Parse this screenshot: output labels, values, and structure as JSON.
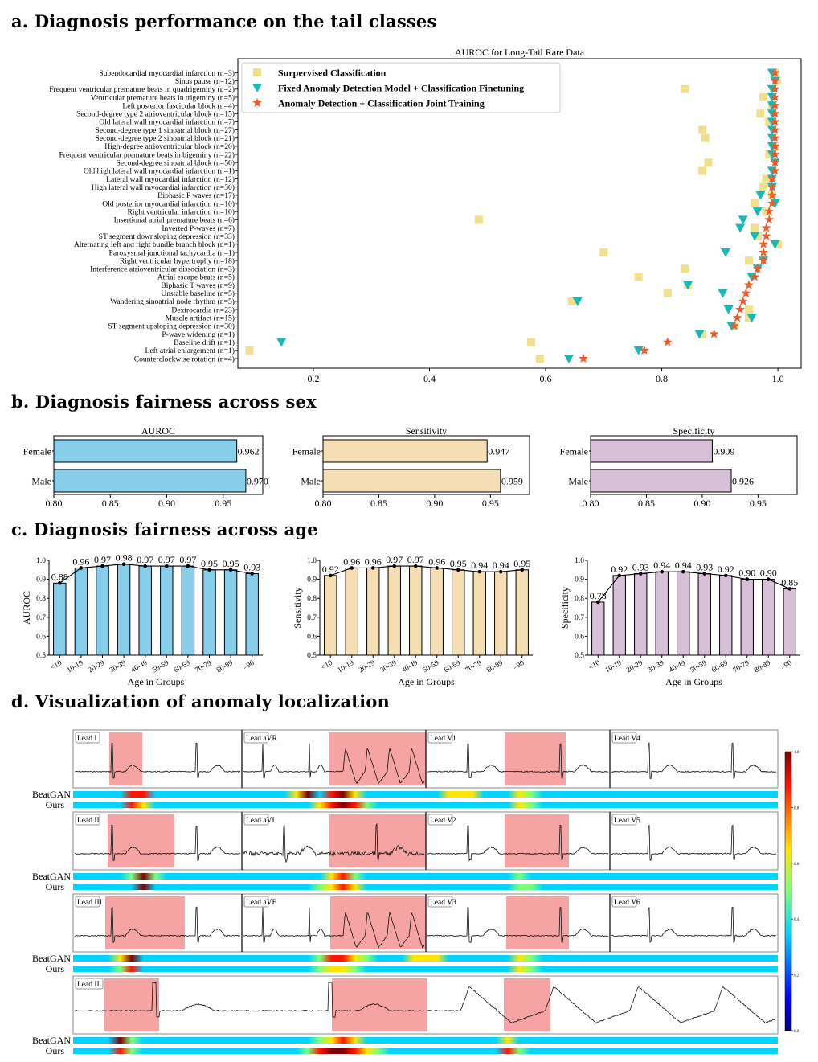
{
  "sections": {
    "a": "a. Diagnosis performance on the tail classes",
    "b": "b. Diagnosis fairness across sex",
    "c": "c. Diagnosis fairness across age",
    "d": "d. Visualization of anomaly localization"
  },
  "chart_data": [
    {
      "id": "tail",
      "type": "scatter",
      "title": "AUROC for Long-Tail Rare Data",
      "xlim": [
        0.07,
        1.04
      ],
      "xticks": [
        "0.2",
        "0.4",
        "0.6",
        "0.8",
        "1.0"
      ],
      "xtick_values": [
        0.2,
        0.4,
        0.6,
        0.8,
        1.0
      ],
      "legend_position": "top-left",
      "categories": [
        "Subendocardial myocardial infarction (n=3)",
        "Sinus pause (n=12)",
        "Frequent ventricular premature beats in quadrigeminy (n=2)",
        "Ventricular premature beats in trigeminy (n=5)",
        "Left posterior fascicular block (n=4)",
        "Second-degree type 2 atrioventricular block (n=15)",
        "Old lateral wall myocardial infarction (n=7)",
        "Second-degree type 1 sinoatrial block (n=27)",
        "Second-degree type 2 sinoatrial block (n=21)",
        "High-degree atrioventricular block (n=20)",
        "Frequent ventricular premature beats in bigeminy (n=22)",
        "Second-degree sinoatrial block (n=50)",
        "Old high lateral wall myocardial infarction (n=1)",
        "Lateral wall myocardial infarction (n=12)",
        "High lateral wall myocardial infarction (n=30)",
        "Biphasic P waves (n=17)",
        "Old posterior myocardial infarction (n=10)",
        "Right ventricular infarction (n=10)",
        "Insertional atrial premature beats (n=6)",
        "Inverted P-waves (n=7)",
        "ST segment downsloping depression (n=33)",
        "Alternating left and right bundle branch block (n=1)",
        "Paroxysmal junctional tachycardia (n=1)",
        "Right ventricular hypertrophy (n=18)",
        "Interference atrioventricular dissociation (n=3)",
        "Atrial escape beats (n=5)",
        "Biphasic T waves (n=9)",
        "Unstable baseline (n=5)",
        "Wandering sinoatrial node rhythm (n=5)",
        "Dextrocardia (n=23)",
        "Muscle artifact (n=15)",
        "ST segment upsloping depression (n=30)",
        "P-wave widening (n=1)",
        "Baseline drift (n=1)",
        "Left atrial enlargement (n=1)",
        "Counterclockwise rotation (n=4)"
      ],
      "series": [
        {
          "name": "Surpervised Classification",
          "marker": "square",
          "color": "#f0e08c",
          "values": [
            0.995,
            0.998,
            0.84,
            0.975,
            0.99,
            0.97,
            0.985,
            0.87,
            0.875,
            0.995,
            0.985,
            0.88,
            0.87,
            0.98,
            0.975,
            0.99,
            0.96,
            0.98,
            0.485,
            0.96,
            0.965,
            1.0,
            0.7,
            0.95,
            0.84,
            0.76,
            0.845,
            0.81,
            0.645,
            0.95,
            0.95,
            0.925,
            0.87,
            0.575,
            0.09,
            0.59
          ]
        },
        {
          "name": "Fixed Anomaly Detection Model + Classification Finetuning",
          "marker": "triangle",
          "color": "#17b8b8",
          "values": [
            0.99,
            0.995,
            0.99,
            0.99,
            0.99,
            0.99,
            0.99,
            0.99,
            0.99,
            0.99,
            0.99,
            0.995,
            0.99,
            0.99,
            0.99,
            0.97,
            0.995,
            0.965,
            0.94,
            0.935,
            0.96,
            0.995,
            0.91,
            0.975,
            0.965,
            0.955,
            0.845,
            0.905,
            0.655,
            0.915,
            0.955,
            0.92,
            0.865,
            0.145,
            0.76,
            0.64
          ]
        },
        {
          "name": "Anomaly Detection + Classification Joint Training",
          "marker": "star",
          "color": "#f05a28",
          "values": [
            0.995,
            0.995,
            0.995,
            0.995,
            0.995,
            0.995,
            0.995,
            0.995,
            0.995,
            0.995,
            0.995,
            0.995,
            0.995,
            0.99,
            0.99,
            0.99,
            0.99,
            0.985,
            0.985,
            0.98,
            0.98,
            0.975,
            0.975,
            0.975,
            0.965,
            0.96,
            0.95,
            0.945,
            0.94,
            0.935,
            0.93,
            0.925,
            0.89,
            0.81,
            0.77,
            0.665
          ]
        }
      ]
    },
    {
      "id": "sex",
      "type": "bar",
      "orientation": "horizontal",
      "panels": [
        {
          "title": "AUROC",
          "color": "#87ceeb",
          "categories": [
            "Female",
            "Male"
          ],
          "values": [
            0.962,
            0.97
          ],
          "labels": [
            "0.962",
            "0.970"
          ]
        },
        {
          "title": "Sensitivity",
          "color": "#f5deb3",
          "categories": [
            "Female",
            "Male"
          ],
          "values": [
            0.947,
            0.959
          ],
          "labels": [
            "0.947",
            "0.959"
          ]
        },
        {
          "title": "Specificity",
          "color": "#d8bfd8",
          "categories": [
            "Female",
            "Male"
          ],
          "values": [
            0.909,
            0.926
          ],
          "labels": [
            "0.909",
            "0.926"
          ]
        }
      ],
      "xlim": [
        0.8,
        0.985
      ],
      "xticks": [
        "0.80",
        "0.85",
        "0.90",
        "0.95"
      ],
      "xtick_values": [
        0.8,
        0.85,
        0.9,
        0.95
      ]
    },
    {
      "id": "age",
      "type": "bar",
      "xlabel": "Age in Groups",
      "categories": [
        "<10",
        "10-19",
        "20-29",
        "30-39",
        "40-49",
        "50-59",
        "60-69",
        "70-79",
        "80-89",
        ">90"
      ],
      "ylim": [
        0.5,
        1.0
      ],
      "yticks": [
        "0.5",
        "0.6",
        "0.7",
        "0.8",
        "0.9",
        "1.0"
      ],
      "ytick_values": [
        0.5,
        0.6,
        0.7,
        0.8,
        0.9,
        1.0
      ],
      "panels": [
        {
          "ylabel": "AUROC",
          "color": "#87ceeb",
          "values": [
            0.88,
            0.96,
            0.97,
            0.98,
            0.97,
            0.97,
            0.97,
            0.95,
            0.95,
            0.93
          ],
          "labels": [
            "0.88",
            "0.96",
            "0.97",
            "0.98",
            "0.97",
            "0.97",
            "0.97",
            "0.95",
            "0.95",
            "0.93"
          ]
        },
        {
          "ylabel": "Sensitivity",
          "color": "#f5deb3",
          "values": [
            0.92,
            0.96,
            0.96,
            0.97,
            0.97,
            0.96,
            0.95,
            0.94,
            0.94,
            0.95
          ],
          "labels": [
            "0.92",
            "0.96",
            "0.96",
            "0.97",
            "0.97",
            "0.96",
            "0.95",
            "0.94",
            "0.94",
            "0.95"
          ]
        },
        {
          "ylabel": "Specificity",
          "color": "#d8bfd8",
          "values": [
            0.78,
            0.92,
            0.93,
            0.94,
            0.94,
            0.93,
            0.92,
            0.9,
            0.9,
            0.85
          ],
          "labels": [
            "0.78",
            "0.92",
            "0.93",
            "0.94",
            "0.94",
            "0.93",
            "0.92",
            "0.90",
            "0.90",
            "0.85"
          ]
        }
      ]
    }
  ],
  "ecg": {
    "rows": [
      {
        "leads": [
          "Lead I",
          "Lead aVR",
          "Lead V1",
          "Lead V4"
        ]
      },
      {
        "leads": [
          "Lead II",
          "Lead aVL",
          "Lead V2",
          "Lead V5"
        ]
      },
      {
        "leads": [
          "Lead III",
          "Lead aVF",
          "Lead V3",
          "Lead V6"
        ]
      },
      {
        "leads": [
          "Lead II"
        ]
      }
    ],
    "heatmap_labels": [
      "BeatGAN",
      "Ours"
    ],
    "colorbar_ticks": [
      "0.0",
      "0.2",
      "0.4",
      "0.6",
      "0.8",
      "1.0"
    ],
    "colorbar_tick_values": [
      0,
      0.2,
      0.4,
      0.6,
      0.8,
      1.0
    ],
    "colors": {
      "highlight": "#f5a3a3",
      "trace": "#111111"
    }
  }
}
